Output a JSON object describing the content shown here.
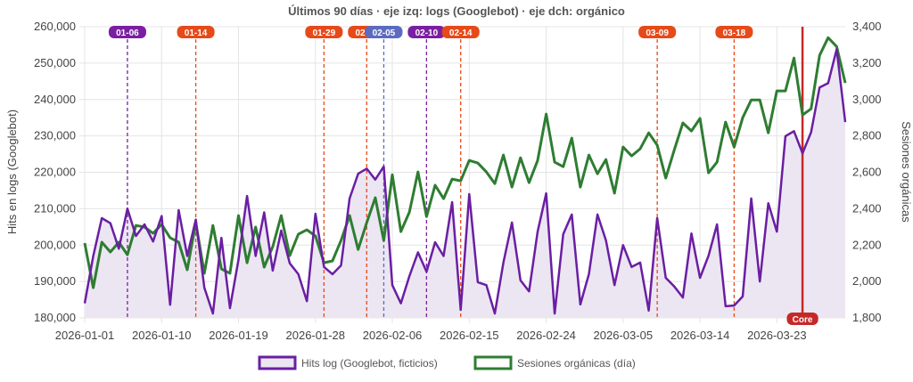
{
  "chart_data": {
    "type": "line",
    "title": "Últimos 90 días · eje izq: logs (Googlebot) · eje dch: orgánico",
    "ylabel_left": "Hits en logs (Googlebot)",
    "ylabel_right": "Sesiones orgánicas",
    "x_start": "2026-01-01",
    "x_end": "2026-03-31",
    "x_tick_labels": [
      "2026-01-01",
      "2026-01-10",
      "2026-01-19",
      "2026-01-28",
      "2026-02-06",
      "2026-02-15",
      "2026-02-24",
      "2026-03-05",
      "2026-03-14",
      "2026-03-23"
    ],
    "ylim_left": [
      180000,
      260000
    ],
    "ylim_right": [
      1800,
      3400
    ],
    "y_ticks_left": [
      "180,000",
      "190,000",
      "200,000",
      "210,000",
      "220,000",
      "230,000",
      "240,000",
      "250,000",
      "260,000"
    ],
    "y_ticks_right": [
      "1,800",
      "2,000",
      "2,200",
      "2,400",
      "2,600",
      "2,800",
      "3,000",
      "3,200",
      "3,400"
    ],
    "grid": true,
    "legend_position": "bottom",
    "series": [
      {
        "name": "Hits log (Googlebot, ficticios)",
        "axis": "left",
        "color": "#6a1fa2",
        "fill": "#ece6f3",
        "values": [
          184000,
          197000,
          207400,
          206000,
          199000,
          210000,
          202500,
          205700,
          201000,
          208000,
          183600,
          209600,
          197000,
          207000,
          188300,
          181200,
          202000,
          182700,
          196000,
          213500,
          197000,
          209000,
          193000,
          204000,
          195000,
          192000,
          184600,
          208600,
          194000,
          192000,
          194400,
          212800,
          219600,
          221000,
          218000,
          221600,
          189000,
          184000,
          191500,
          198000,
          192700,
          200800,
          197000,
          211800,
          182200,
          214000,
          189800,
          189000,
          181200,
          195200,
          206200,
          190300,
          187300,
          203700,
          214200,
          181200,
          203000,
          208400,
          183700,
          192000,
          208400,
          201300,
          189000,
          200000,
          194000,
          195200,
          182000,
          207400,
          191000,
          188600,
          185600,
          203200,
          191000,
          197100,
          205700,
          183200,
          183400,
          185900,
          212800,
          190000,
          211500,
          203700,
          229900,
          231300,
          225200,
          231000,
          243300,
          244500,
          253800,
          233800
        ]
      },
      {
        "name": "Sesiones orgánicas (día)",
        "axis": "right",
        "color": "#2e7d32",
        "values": [
          2211,
          1966,
          2216,
          2162,
          2216,
          2147,
          2308,
          2299,
          2265,
          2314,
          2240,
          2216,
          2064,
          2323,
          2045,
          2308,
          2069,
          2045,
          2362,
          2103,
          2299,
          2079,
          2191,
          2362,
          2142,
          2260,
          2284,
          2250,
          2103,
          2113,
          2225,
          2362,
          2176,
          2323,
          2460,
          2225,
          2587,
          2274,
          2382,
          2602,
          2357,
          2529,
          2455,
          2563,
          2553,
          2665,
          2651,
          2602,
          2538,
          2695,
          2519,
          2680,
          2543,
          2665,
          2920,
          2656,
          2631,
          2788,
          2519,
          2695,
          2592,
          2670,
          2485,
          2739,
          2690,
          2729,
          2817,
          2749,
          2568,
          2724,
          2871,
          2827,
          2896,
          2597,
          2656,
          2876,
          2739,
          2900,
          2998,
          2998,
          2817,
          3047,
          3047,
          3228,
          2915,
          2949,
          3242,
          3340,
          3291,
          3091
        ]
      }
    ],
    "annotations": [
      {
        "label": "01-06",
        "date": "2026-01-06",
        "color": "#7b1fa2",
        "style": "dashed"
      },
      {
        "label": "01-14",
        "date": "2026-01-14",
        "color": "#e64a19",
        "style": "dashed"
      },
      {
        "label": "01-29",
        "date": "2026-01-29",
        "color": "#e64a19",
        "style": "dashed"
      },
      {
        "label": "02-03",
        "date": "2026-02-03",
        "color": "#e64a19",
        "style": "dashed"
      },
      {
        "label": "02-05",
        "date": "2026-02-05",
        "color": "#5c6bc0",
        "style": "dashed"
      },
      {
        "label": "02-10",
        "date": "2026-02-10",
        "color": "#7b1fa2",
        "style": "dashed"
      },
      {
        "label": "02-14",
        "date": "2026-02-14",
        "color": "#e64a19",
        "style": "dashed"
      },
      {
        "label": "03-09",
        "date": "2026-03-09",
        "color": "#e64a19",
        "style": "dashed"
      },
      {
        "label": "03-18",
        "date": "2026-03-18",
        "color": "#e64a19",
        "style": "dashed"
      },
      {
        "label": "Core",
        "date": "2026-03-26",
        "color": "#c62828",
        "style": "solid"
      }
    ]
  }
}
